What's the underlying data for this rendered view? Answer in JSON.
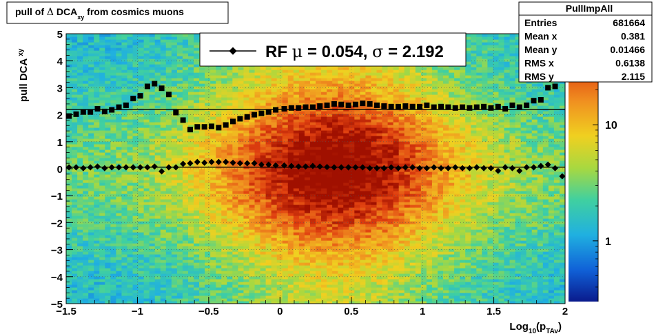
{
  "title_box": {
    "prefix": "pull of ",
    "delta": "Δ",
    "main": " DCA",
    "sub": "xy",
    "suffix": " from cosmics muons"
  },
  "stats_box": {
    "name": "PullImpAll",
    "rows": [
      {
        "label": "Entries",
        "value": "681664"
      },
      {
        "label": "Mean x",
        "value": "0.381"
      },
      {
        "label": "Mean y",
        "value": "0.01466"
      },
      {
        "label": "RMS x",
        "value": "0.6138"
      },
      {
        "label": "RMS y",
        "value": "2.115"
      }
    ]
  },
  "legend": {
    "prefix": "RF ",
    "mu": "μ",
    "mu_text": " =  0.054, ",
    "sigma": "σ",
    "sigma_text": " =   2.192"
  },
  "colorbar": {
    "tick_labels": [
      "10",
      "1"
    ],
    "tick_values": [
      10,
      1
    ],
    "scale": "log",
    "range": [
      0.3,
      60
    ]
  },
  "chart_data": {
    "type": "heatmap",
    "title": "pull of Δ DCA_xy from cosmics muons",
    "ylabel": {
      "main": "pull DCA",
      "sub": "xy"
    },
    "xlabel": {
      "main": "Log",
      "sub": "10",
      "paren": "(p",
      "sub2": "TAv",
      "close": ")"
    },
    "xlim": [
      -1.5,
      2
    ],
    "ylim": [
      -5,
      5
    ],
    "x_tick_labels": [
      "−1.5",
      "−1",
      "−0.5",
      "0",
      "0.5",
      "1",
      "1.5",
      "2"
    ],
    "x_tick_values": [
      -1.5,
      -1,
      -0.5,
      0,
      0.5,
      1,
      1.5,
      2
    ],
    "y_tick_labels": [
      "−5",
      "−4",
      "−3",
      "−2",
      "−1",
      "0",
      "1",
      "2",
      "3",
      "4",
      "5"
    ],
    "y_tick_values": [
      -5,
      -4,
      -3,
      -2,
      -1,
      0,
      1,
      2,
      3,
      4,
      5
    ],
    "grid": true,
    "density": {
      "peak_x": 0.38,
      "spread_x": 0.62,
      "peak_y": 0.0,
      "spread_y": 2.1
    },
    "fit_lines": [
      {
        "y": 2.192
      },
      {
        "y": 0.054
      }
    ],
    "series": [
      {
        "marker": "square",
        "x": [
          -1.48,
          -1.43,
          -1.38,
          -1.33,
          -1.28,
          -1.23,
          -1.18,
          -1.13,
          -1.08,
          -1.03,
          -0.98,
          -0.93,
          -0.88,
          -0.83,
          -0.78,
          -0.73,
          -0.68,
          -0.63,
          -0.58,
          -0.53,
          -0.48,
          -0.43,
          -0.38,
          -0.33,
          -0.28,
          -0.23,
          -0.18,
          -0.13,
          -0.08,
          -0.03,
          0.03,
          0.08,
          0.13,
          0.18,
          0.23,
          0.28,
          0.33,
          0.38,
          0.43,
          0.48,
          0.53,
          0.58,
          0.63,
          0.68,
          0.73,
          0.78,
          0.83,
          0.88,
          0.93,
          0.98,
          1.03,
          1.08,
          1.13,
          1.18,
          1.23,
          1.28,
          1.33,
          1.38,
          1.43,
          1.48,
          1.53,
          1.58,
          1.63,
          1.68,
          1.73,
          1.78,
          1.83,
          1.88,
          1.93,
          1.98
        ],
        "y": [
          1.95,
          2.02,
          2.1,
          2.1,
          2.22,
          2.12,
          2.18,
          2.28,
          2.35,
          2.6,
          2.7,
          3.05,
          3.15,
          2.98,
          2.75,
          2.08,
          1.8,
          1.45,
          1.55,
          1.55,
          1.57,
          1.52,
          1.62,
          1.75,
          1.85,
          1.92,
          2.0,
          2.05,
          2.1,
          2.18,
          2.22,
          2.25,
          2.25,
          2.28,
          2.28,
          2.32,
          2.35,
          2.4,
          2.38,
          2.35,
          2.38,
          2.42,
          2.4,
          2.35,
          2.32,
          2.3,
          2.3,
          2.32,
          2.3,
          2.3,
          2.35,
          2.28,
          2.3,
          2.28,
          2.25,
          2.28,
          2.25,
          2.28,
          2.3,
          2.25,
          2.3,
          2.22,
          2.35,
          2.28,
          2.35,
          2.52,
          2.55,
          3.0,
          3.05,
          3.35
        ]
      },
      {
        "marker": "diamond",
        "x": [
          -1.48,
          -1.43,
          -1.38,
          -1.33,
          -1.28,
          -1.23,
          -1.18,
          -1.13,
          -1.08,
          -1.03,
          -0.98,
          -0.93,
          -0.88,
          -0.83,
          -0.78,
          -0.73,
          -0.68,
          -0.63,
          -0.58,
          -0.53,
          -0.48,
          -0.43,
          -0.38,
          -0.33,
          -0.28,
          -0.23,
          -0.18,
          -0.13,
          -0.08,
          -0.03,
          0.03,
          0.08,
          0.13,
          0.18,
          0.23,
          0.28,
          0.33,
          0.38,
          0.43,
          0.48,
          0.53,
          0.58,
          0.63,
          0.68,
          0.73,
          0.78,
          0.83,
          0.88,
          0.93,
          0.98,
          1.03,
          1.08,
          1.13,
          1.18,
          1.23,
          1.28,
          1.33,
          1.38,
          1.43,
          1.48,
          1.53,
          1.58,
          1.63,
          1.68,
          1.73,
          1.78,
          1.83,
          1.88,
          1.93,
          1.98
        ],
        "y": [
          0.05,
          0.05,
          0.02,
          0.05,
          0.08,
          0.02,
          0.05,
          0.05,
          0.05,
          0.05,
          0.05,
          0.05,
          0.08,
          -0.1,
          0.05,
          0.05,
          0.18,
          0.2,
          0.25,
          0.22,
          0.25,
          0.25,
          0.25,
          0.22,
          0.2,
          0.2,
          0.2,
          0.15,
          0.15,
          0.12,
          0.12,
          0.1,
          0.08,
          0.08,
          0.1,
          0.08,
          0.06,
          0.05,
          0.05,
          0.05,
          0.05,
          0.05,
          0.02,
          0.02,
          0.02,
          0.05,
          0.02,
          0.05,
          0.05,
          0.02,
          0.02,
          0.05,
          0.02,
          0.02,
          0.05,
          0.02,
          0.02,
          0.05,
          0.02,
          0.02,
          -0.08,
          0.05,
          0.02,
          -0.08,
          0.05,
          0.05,
          0.1,
          0.15,
          0.02,
          -0.28
        ]
      }
    ]
  }
}
